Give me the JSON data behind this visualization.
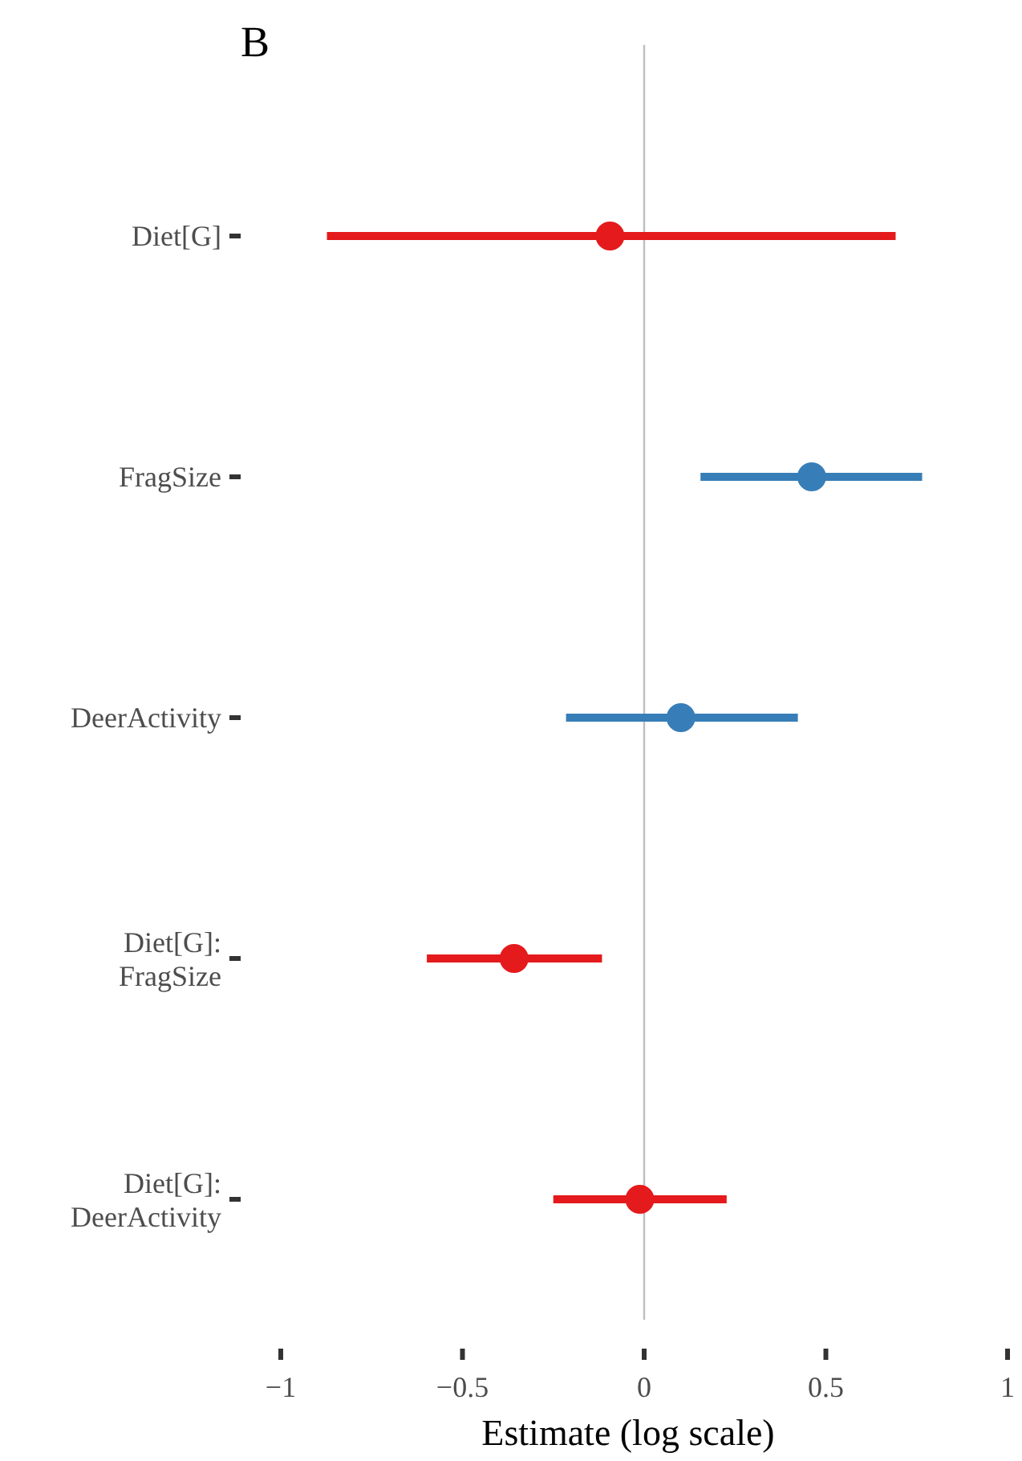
{
  "chart_data": {
    "type": "scatter",
    "orientation": "horizontal",
    "title": "B",
    "xlabel": "Estimate (log scale)",
    "categories": [
      "Diet[G]",
      "FragSize",
      "DeerActivity",
      "Diet[G]:\nFragSize",
      "Diet[G]:\nDeerActivity"
    ],
    "series": [
      {
        "values": [
          -0.094,
          0.461,
          0.101,
          -0.358,
          -0.012
        ],
        "colors": [
          "#e41a1c",
          "#377eb8",
          "#377eb8",
          "#e41a1c",
          "#e41a1c"
        ],
        "errors": [
          [
            -0.873,
            0.692
          ],
          [
            0.155,
            0.765
          ],
          [
            -0.215,
            0.423
          ],
          [
            -0.598,
            -0.116
          ],
          [
            -0.25,
            0.227
          ]
        ]
      }
    ],
    "xlim": [
      -1,
      1
    ],
    "xticks": [
      {
        "value": -1,
        "label": "−1"
      },
      {
        "value": -0.5,
        "label": "−0.5"
      },
      0,
      0.5,
      1
    ],
    "ref_lines": [
      {
        "axis": "x",
        "value": 0,
        "color": "#bdbdbd"
      }
    ],
    "marker": "circle",
    "grid": false
  }
}
